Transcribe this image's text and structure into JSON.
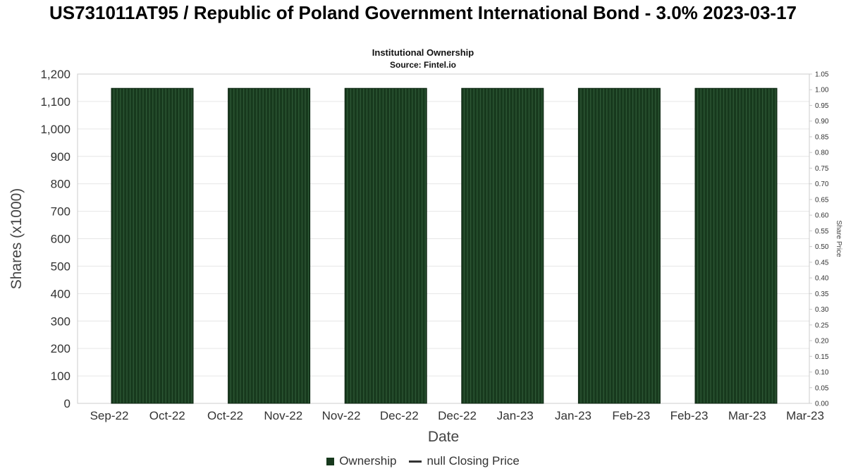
{
  "chart_data": {
    "type": "bar",
    "title": "US731011AT95 / Republic of Poland Government International Bond - 3.0% 2023-03-17",
    "subtitle": "Institutional Ownership",
    "source": "Source: Fintel.io",
    "xlabel": "Date",
    "ylabel": "Shares (x1000)",
    "ylabel_right": "Share Price",
    "categories": [
      "Sep-22",
      "Oct-22",
      "Oct-22",
      "Nov-22",
      "Nov-22",
      "Dec-22",
      "Dec-22",
      "Jan-23",
      "Jan-23",
      "Feb-23",
      "Feb-23",
      "Mar-23",
      "Mar-23"
    ],
    "series": [
      {
        "name": "Ownership",
        "type": "bar",
        "color": "#17391d",
        "stripe_color": "#2f5a36",
        "values": [
          1148,
          1148,
          1148,
          1148,
          1148,
          1148
        ]
      },
      {
        "name": "null Closing Price",
        "type": "line",
        "color": "#333333",
        "values": []
      }
    ],
    "y_left": {
      "min": 0,
      "max": 1200,
      "step": 100
    },
    "y_right": {
      "min": 0,
      "max": 1.05,
      "step": 0.05
    },
    "grid": true,
    "legend_position": "bottom",
    "colors": {
      "grid": "#e6e6e6",
      "frame": "#cccccc",
      "bar_outline": "#0c2511"
    }
  }
}
